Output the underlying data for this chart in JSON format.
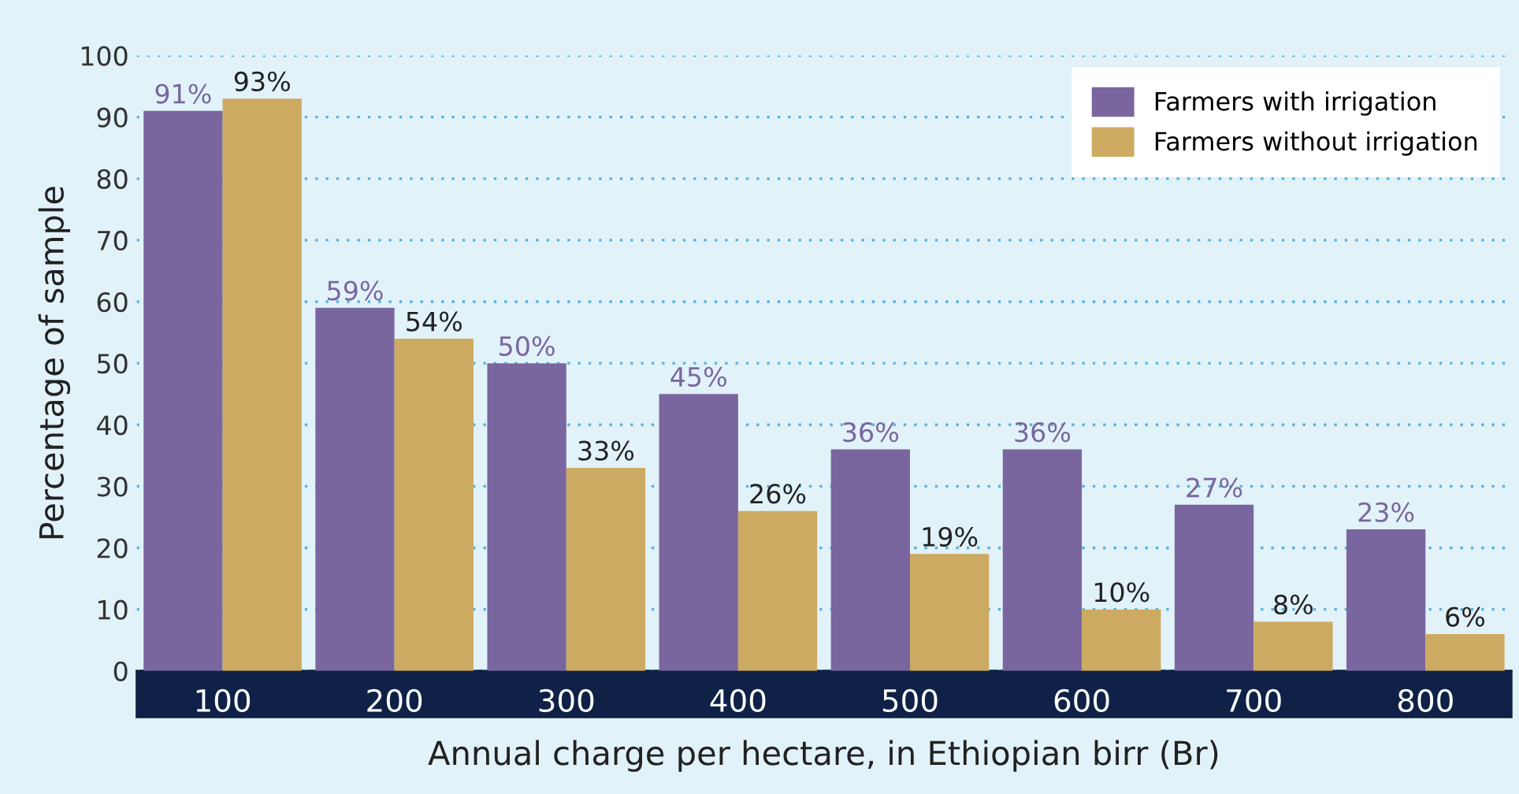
{
  "chart_data": {
    "type": "bar",
    "xlabel": "Annual charge per hectare, in Ethiopian birr (Br)",
    "ylabel": "Percentage of sample",
    "categories": [
      "100",
      "200",
      "300",
      "400",
      "500",
      "600",
      "700",
      "800"
    ],
    "series": [
      {
        "name": "Farmers with irrigation",
        "color": "#79669f",
        "values": [
          91,
          59,
          50,
          45,
          36,
          36,
          27,
          23
        ],
        "value_labels": [
          "91%",
          "59%",
          "50%",
          "45%",
          "36%",
          "36%",
          "27%",
          "23%"
        ]
      },
      {
        "name": "Farmers without irrigation",
        "color": "#cdaa62",
        "values": [
          93,
          54,
          33,
          26,
          19,
          10,
          8,
          6
        ],
        "value_labels": [
          "93%",
          "54%",
          "33%",
          "26%",
          "19%",
          "10%",
          "8%",
          "6%"
        ]
      }
    ],
    "ylim": [
      0,
      100
    ],
    "yticks": [
      0,
      10,
      20,
      30,
      40,
      50,
      60,
      70,
      80,
      90,
      100
    ],
    "grid": "y",
    "legend": "top right"
  }
}
